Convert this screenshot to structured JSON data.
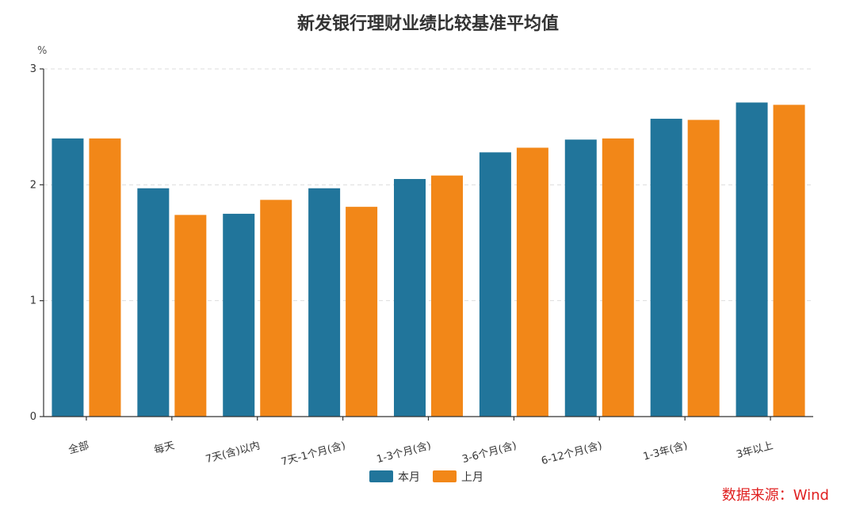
{
  "chart_data": {
    "type": "bar",
    "title": "新发银行理财业绩比较基准平均值",
    "ylabel": "%",
    "xlabel": "",
    "ylim": [
      0,
      3
    ],
    "yticks": [
      0,
      1,
      2,
      3
    ],
    "grid": true,
    "legend_position": "bottom",
    "categories": [
      "全部",
      "每天",
      "7天(含)以内",
      "7天-1个月(含)",
      "1-3个月(含)",
      "3-6个月(含)",
      "6-12个月(含)",
      "1-3年(含)",
      "3年以上"
    ],
    "series": [
      {
        "name": "本月",
        "color": "#21759b",
        "values": [
          2.4,
          1.97,
          1.75,
          1.97,
          2.05,
          2.28,
          2.39,
          2.57,
          2.71
        ]
      },
      {
        "name": "上月",
        "color": "#f28718",
        "values": [
          2.4,
          1.74,
          1.87,
          1.81,
          2.08,
          2.32,
          2.4,
          2.56,
          2.69
        ]
      }
    ]
  },
  "source_note": "数据来源：Wind"
}
